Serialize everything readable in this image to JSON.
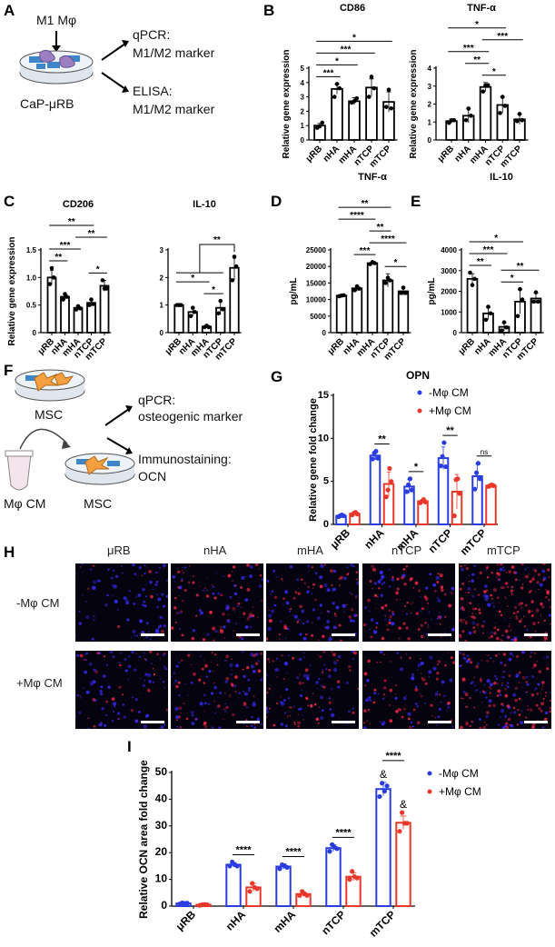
{
  "panel_letters": {
    "A": "A",
    "B": "B",
    "C": "C",
    "D": "D",
    "E": "E",
    "F": "F",
    "G": "G",
    "H": "H",
    "I": "I"
  },
  "schematic_a": {
    "cell": "M1 Mφ",
    "substrate": "CaP-μRB",
    "out1_title": "qPCR:",
    "out1_sub": "M1/M2 marker",
    "out2_title": "ELISA:",
    "out2_sub": "M1/M2 marker"
  },
  "schematic_f": {
    "cell": "MSC",
    "tube": "Mφ CM",
    "cell2": "MSC",
    "out1_title": "qPCR:",
    "out1_sub": "osteogenic marker",
    "out2_title": "Immunostaining:",
    "out2_sub": "OCN"
  },
  "colors": {
    "minus": "#2a3de0",
    "plus": "#e8382b",
    "bar": "#000000"
  },
  "microscopy": {
    "columns": [
      "μRB",
      "nHA",
      "mHA",
      "nTCP",
      "mTCP"
    ],
    "rows": [
      "-Mφ CM",
      "+Mφ CM"
    ],
    "stain_colors": [
      "#3a2cff",
      "#ff2a4a"
    ]
  },
  "chart_data": [
    {
      "panel": "B",
      "type": "bar",
      "title": "CD86",
      "ylabel": "Relative gene expression",
      "categories": [
        "μRB",
        "nHA",
        "mHA",
        "nTCP",
        "mTCP"
      ],
      "values": [
        1.0,
        3.55,
        2.7,
        3.65,
        2.65
      ],
      "errors": [
        0.15,
        0.35,
        0.25,
        0.6,
        0.7
      ],
      "points": [
        [
          0.85,
          0.95,
          1.2
        ],
        [
          3.0,
          3.9,
          3.6
        ],
        [
          2.6,
          2.7,
          2.9
        ],
        [
          3.0,
          4.4,
          3.6
        ],
        [
          2.3,
          3.5,
          2.2
        ]
      ],
      "ylim": [
        0,
        5
      ],
      "yticks": [
        "0",
        "1",
        "2",
        "3",
        "4",
        "5"
      ],
      "significance": [
        {
          "groups": [
            0,
            1
          ],
          "label": "***"
        },
        {
          "groups": [
            0,
            2
          ],
          "label": "*"
        },
        {
          "groups": [
            0,
            3
          ],
          "label": "***"
        },
        {
          "groups": [
            0,
            4
          ],
          "label": "*"
        }
      ]
    },
    {
      "panel": "B",
      "type": "bar",
      "title": "TNF-α",
      "ylabel": "Relative gene expression",
      "categories": [
        "μRB",
        "nHA",
        "mHA",
        "nTCP",
        "mTCP"
      ],
      "values": [
        1.05,
        1.35,
        2.95,
        1.95,
        1.15
      ],
      "errors": [
        0.12,
        0.4,
        0.25,
        0.45,
        0.28
      ],
      "points": [
        [
          0.95,
          1.1,
          1.1
        ],
        [
          1.1,
          1.75,
          1.35
        ],
        [
          2.7,
          3.05,
          3.05
        ],
        [
          1.5,
          2.4,
          1.9
        ],
        [
          1.05,
          1.45,
          1.1
        ]
      ],
      "ylim": [
        0,
        4
      ],
      "yticks": [
        "0",
        "1",
        "2",
        "3",
        "4"
      ],
      "significance": [
        {
          "groups": [
            2,
            3
          ],
          "label": "*"
        },
        {
          "groups": [
            1,
            2
          ],
          "label": "**"
        },
        {
          "groups": [
            0,
            2
          ],
          "label": "***"
        },
        {
          "groups": [
            2,
            4
          ],
          "label": "***"
        },
        {
          "groups": [
            0,
            3
          ],
          "label": "*"
        }
      ]
    },
    {
      "panel": "C",
      "type": "bar",
      "title": "CD206",
      "ylabel": "Relative gene expression",
      "categories": [
        "μRB",
        "nHA",
        "mHA",
        "nTCP",
        "mTCP"
      ],
      "values": [
        1.0,
        0.65,
        0.45,
        0.54,
        0.85
      ],
      "errors": [
        0.13,
        0.06,
        0.04,
        0.06,
        0.1
      ],
      "points": [
        [
          0.88,
          1.17,
          1.0
        ],
        [
          0.6,
          0.7,
          0.65
        ],
        [
          0.42,
          0.48,
          0.44
        ],
        [
          0.5,
          0.6,
          0.52
        ],
        [
          0.95,
          0.8,
          0.8
        ]
      ],
      "ylim": [
        0,
        1.5
      ],
      "yticks": [
        "0",
        "0.5",
        "1.0",
        "1.5"
      ],
      "significance": [
        {
          "groups": [
            0,
            1
          ],
          "label": "**"
        },
        {
          "groups": [
            3,
            4
          ],
          "label": "*"
        },
        {
          "groups": [
            0,
            2
          ],
          "label": "***"
        },
        {
          "groups": [
            2,
            4
          ],
          "label": "**"
        },
        {
          "groups": [
            0,
            3
          ],
          "label": "**"
        }
      ]
    },
    {
      "panel": "C",
      "type": "bar",
      "title": "IL-10",
      "ylabel": "",
      "categories": [
        "μRB",
        "nHA",
        "mHA",
        "nTCP",
        "mTCP"
      ],
      "values": [
        1.0,
        0.75,
        0.22,
        0.9,
        2.35
      ],
      "errors": [
        0.02,
        0.15,
        0.05,
        0.25,
        0.45
      ],
      "points": [
        [
          1.0,
          1.0,
          1.0
        ],
        [
          0.6,
          0.9,
          0.75
        ],
        [
          0.2,
          0.25,
          0.2
        ],
        [
          0.7,
          1.15,
          0.85
        ],
        [
          1.9,
          2.75,
          2.4
        ]
      ],
      "ylim": [
        0,
        3
      ],
      "yticks": [
        "0",
        "1",
        "2",
        "3"
      ],
      "significance": [
        {
          "groups": [
            2,
            3
          ],
          "label": "*"
        },
        {
          "groups": [
            0,
            2
          ],
          "label": "*"
        }
      ],
      "group_comparison": {
        "group": [
          0,
          3
        ],
        "versus": 4,
        "label": "**"
      }
    },
    {
      "panel": "D",
      "type": "bar",
      "title": "TNF-α",
      "ylabel": "pg/mL",
      "categories": [
        "μRB",
        "nHA",
        "mHA",
        "nTCP",
        "mTCP"
      ],
      "values": [
        11200,
        13400,
        21000,
        15800,
        12500
      ],
      "errors": [
        300,
        800,
        400,
        2000,
        1300
      ],
      "points": [
        [
          11000,
          11200,
          11300
        ],
        [
          12800,
          14000,
          13300
        ],
        [
          20700,
          21300,
          21000
        ],
        [
          15000,
          16600,
          15800
        ],
        [
          12000,
          13600,
          12000
        ]
      ],
      "ylim": [
        0,
        25000
      ],
      "yticks": [
        "0",
        "5000",
        "10000",
        "15000",
        "20000",
        "25000"
      ],
      "significance": [
        {
          "groups": [
            3,
            4
          ],
          "label": "*"
        },
        {
          "groups": [
            1,
            2
          ],
          "label": "***"
        },
        {
          "groups": [
            2,
            4
          ],
          "label": "****"
        },
        {
          "groups": [
            2,
            3
          ],
          "label": "**"
        },
        {
          "groups": [
            0,
            2
          ],
          "label": "****"
        },
        {
          "groups": [
            0,
            3
          ],
          "label": "**"
        }
      ]
    },
    {
      "panel": "E",
      "type": "bar",
      "title": "IL-10",
      "ylabel": "pg/mL",
      "categories": [
        "μRB",
        "nHA",
        "mHA",
        "nTCP",
        "mTCP"
      ],
      "values": [
        2600,
        930,
        280,
        1500,
        1650
      ],
      "errors": [
        250,
        300,
        200,
        600,
        250
      ],
      "points": [
        [
          2900,
          2300,
          2600
        ],
        [
          620,
          1250,
          930
        ],
        [
          100,
          500,
          250
        ],
        [
          800,
          2100,
          1600
        ],
        [
          1500,
          1950,
          1500
        ]
      ],
      "ylim": [
        0,
        4000
      ],
      "yticks": [
        "0",
        "1000",
        "2000",
        "3000",
        "4000"
      ],
      "significance": [
        {
          "groups": [
            0,
            1
          ],
          "label": "**"
        },
        {
          "groups": [
            2,
            3
          ],
          "label": "*"
        },
        {
          "groups": [
            2,
            4
          ],
          "label": "**"
        },
        {
          "groups": [
            0,
            2
          ],
          "label": "***"
        },
        {
          "groups": [
            0,
            3
          ],
          "label": "*"
        }
      ]
    },
    {
      "panel": "G",
      "type": "bar",
      "title": "OPN",
      "ylabel": "Relative gene fold change",
      "categories": [
        "μRB",
        "nHA",
        "mHA",
        "nTCP",
        "mTCP"
      ],
      "series": [
        {
          "name": "-Mφ CM",
          "values": [
            1.0,
            8.0,
            4.4,
            7.7,
            5.6
          ],
          "errors": [
            0.15,
            0.5,
            0.8,
            1.3,
            1.4
          ],
          "points": [
            [
              0.9,
              1.0,
              1.1,
              1.0
            ],
            [
              7.6,
              8.3,
              8.5,
              7.7
            ],
            [
              3.8,
              4.6,
              5.3,
              4.0
            ],
            [
              6.8,
              7.9,
              9.5,
              6.7
            ],
            [
              4.1,
              6.0,
              7.1,
              5.3
            ]
          ]
        },
        {
          "name": "+Mφ CM",
          "values": [
            1.25,
            4.7,
            2.7,
            3.8,
            4.5
          ],
          "errors": [
            0.2,
            1.4,
            0.2,
            2.0,
            0.1
          ],
          "points": [
            [
              1.1,
              1.3,
              1.4,
              1.2
            ],
            [
              3.2,
              4.0,
              6.5,
              5.0
            ],
            [
              2.5,
              2.7,
              2.9,
              2.6
            ],
            [
              1.0,
              5.2,
              5.3,
              3.6
            ],
            [
              4.4,
              4.5,
              4.6,
              4.5
            ]
          ]
        }
      ],
      "ylim": [
        0,
        15
      ],
      "yticks": [
        "0",
        "5",
        "10",
        "15"
      ],
      "significance": [
        "",
        "**",
        "*",
        "**",
        "ns"
      ],
      "annotations": {
        "minus": [
          "",
          "",
          "",
          "",
          ""
        ],
        "plus": [
          "",
          "",
          "",
          "",
          ""
        ]
      },
      "legend": "top-right"
    },
    {
      "panel": "I",
      "type": "bar",
      "title": "",
      "ylabel": "Relative OCN area fold change",
      "categories": [
        "μRB",
        "nHA",
        "mHA",
        "nTCP",
        "mTCP"
      ],
      "series": [
        {
          "name": "-Mφ CM",
          "values": [
            1.0,
            15.5,
            14.8,
            21.7,
            43.8
          ],
          "errors": [
            0.3,
            0.8,
            1.0,
            1.3,
            2.5
          ],
          "points": [
            [
              0.8,
              1.2,
              1.0,
              1.1
            ],
            [
              15,
              16.5,
              15.5,
              15
            ],
            [
              14,
              15.5,
              15,
              14.5
            ],
            [
              20.5,
              23,
              22,
              21.5
            ],
            [
              41,
              46,
              43,
              45
            ]
          ]
        },
        {
          "name": "+Mφ CM",
          "values": [
            0.5,
            7.0,
            4.5,
            11.0,
            31.2
          ],
          "errors": [
            0.3,
            1.5,
            0.8,
            1.5,
            2.5
          ],
          "points": [
            [
              0.3,
              0.5,
              0.6,
              0.5
            ],
            [
              5.5,
              8.5,
              7,
              6.5
            ],
            [
              4,
              5.5,
              4.5,
              4
            ],
            [
              10,
              13,
              11,
              10.5
            ],
            [
              28,
              35,
              31,
              31
            ]
          ]
        }
      ],
      "ylim": [
        0,
        50
      ],
      "yticks": [
        "0",
        "10",
        "20",
        "30",
        "40",
        "50"
      ],
      "significance": [
        "",
        "****",
        "****",
        "****",
        "****"
      ],
      "annotations": {
        "minus": [
          "",
          "",
          "",
          "",
          "&"
        ],
        "plus": [
          "",
          "",
          "",
          "",
          "&"
        ]
      },
      "legend": "top-right"
    }
  ]
}
